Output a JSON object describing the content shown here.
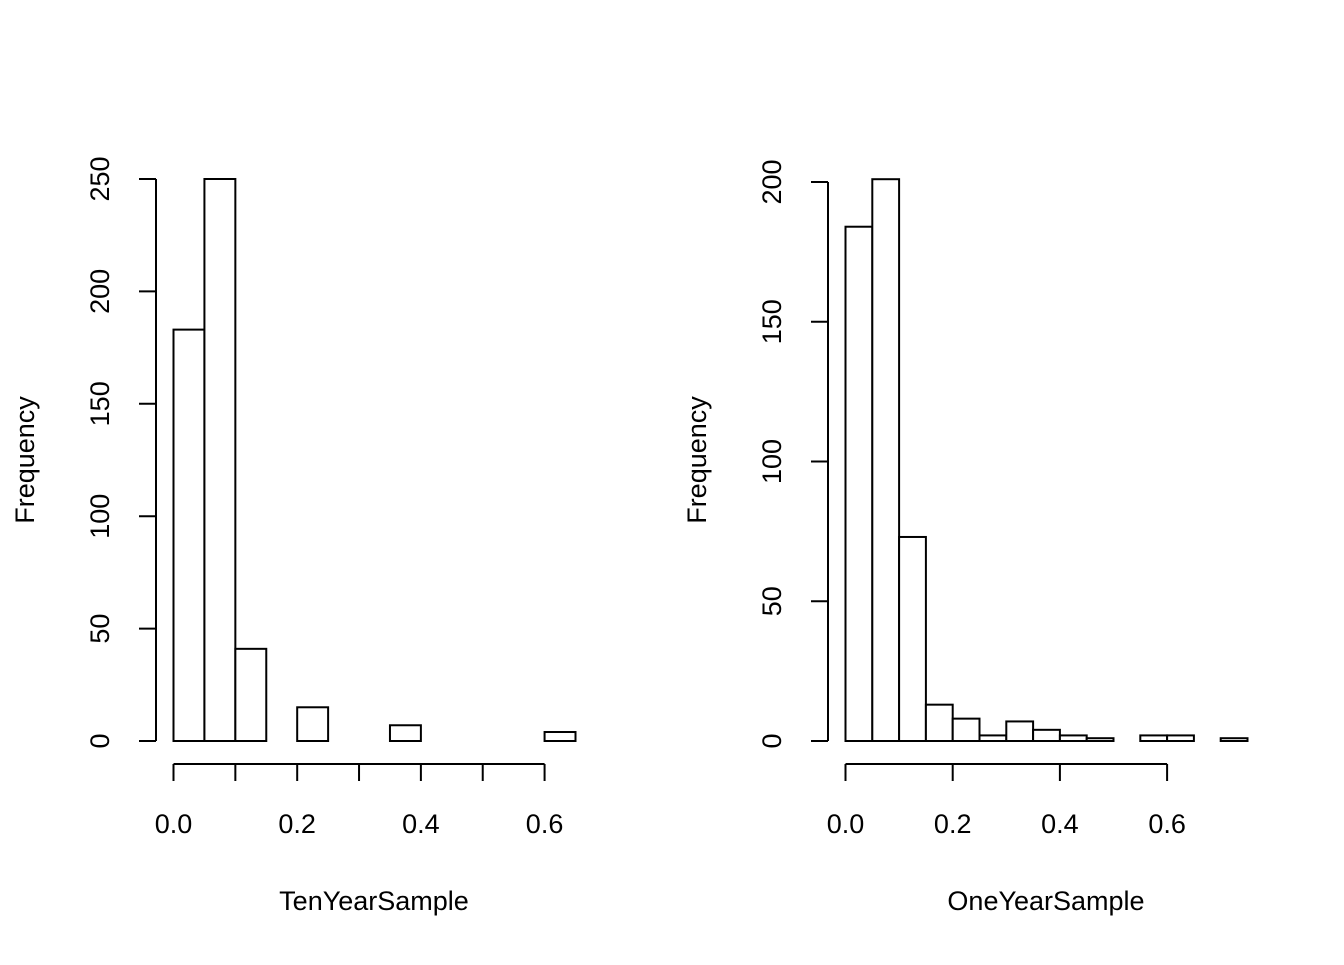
{
  "chart_data": [
    {
      "type": "bar",
      "subtype": "histogram",
      "title": "",
      "xlabel": "TenYearSample",
      "ylabel": "Frequency",
      "bin_edges": [
        0.0,
        0.05,
        0.1,
        0.15,
        0.2,
        0.25,
        0.3,
        0.35,
        0.4,
        0.45,
        0.5,
        0.55,
        0.6,
        0.65
      ],
      "values": [
        183,
        250,
        41,
        0,
        15,
        0,
        0,
        7,
        0,
        0,
        0,
        0,
        4
      ],
      "xlim": [
        0.0,
        0.65
      ],
      "ylim": [
        0,
        250
      ],
      "x_ticks": [
        0.0,
        0.1,
        0.2,
        0.3,
        0.4,
        0.5,
        0.6
      ],
      "x_tick_labels": [
        "0.0",
        "",
        "0.2",
        "",
        "0.4",
        "",
        "0.6"
      ],
      "y_ticks": [
        0,
        50,
        100,
        150,
        200,
        250
      ],
      "y_tick_labels": [
        "0",
        "50",
        "100",
        "150",
        "200",
        "250"
      ],
      "grid": false,
      "bar_fill": "#ffffff",
      "bar_stroke": "#000000"
    },
    {
      "type": "bar",
      "subtype": "histogram",
      "title": "",
      "xlabel": "OneYearSample",
      "ylabel": "Frequency",
      "bin_edges": [
        0.0,
        0.05,
        0.1,
        0.15,
        0.2,
        0.25,
        0.3,
        0.35,
        0.4,
        0.45,
        0.5,
        0.55,
        0.6,
        0.65,
        0.7,
        0.75
      ],
      "values": [
        184,
        201,
        73,
        13,
        8,
        2,
        7,
        4,
        2,
        1,
        0,
        2,
        2,
        0,
        1
      ],
      "xlim": [
        0.0,
        0.75
      ],
      "ylim": [
        0,
        200
      ],
      "x_ticks": [
        0.0,
        0.2,
        0.4,
        0.6
      ],
      "x_tick_labels": [
        "0.0",
        "0.2",
        "0.4",
        "0.6"
      ],
      "y_ticks": [
        0,
        50,
        100,
        150,
        200
      ],
      "y_tick_labels": [
        "0",
        "50",
        "100",
        "150",
        "200"
      ],
      "grid": false,
      "bar_fill": "#ffffff",
      "bar_stroke": "#000000"
    }
  ]
}
